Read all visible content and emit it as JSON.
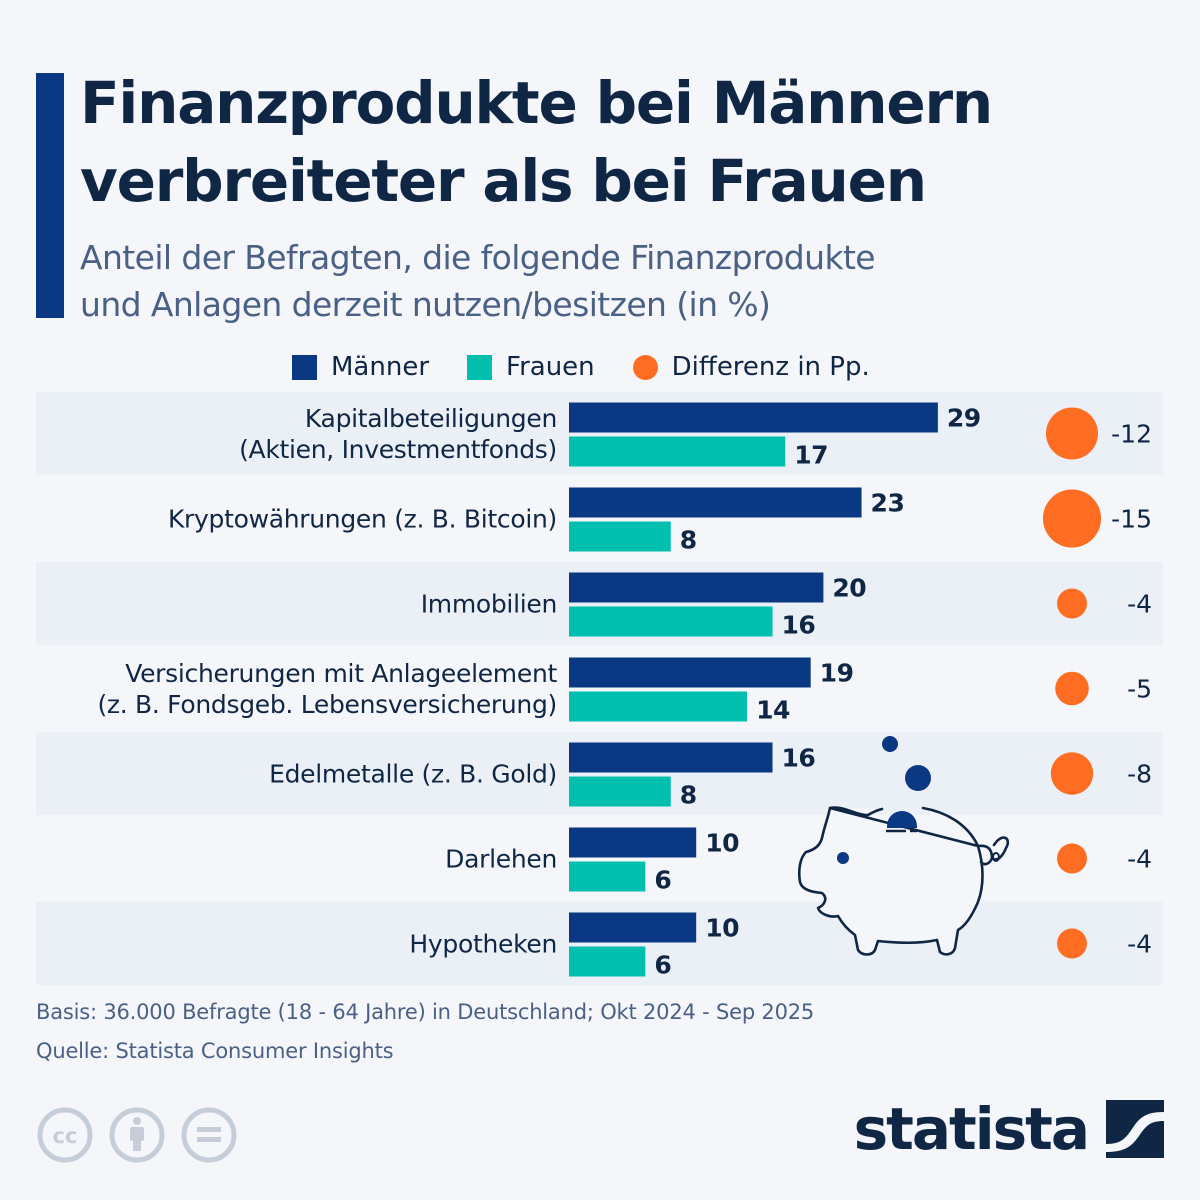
{
  "header": {
    "title_line1": "Finanzprodukte bei Männern",
    "title_line2": "verbreiteter als bei Frauen",
    "subtitle_line1": "Anteil der Befragten, die folgende Finanzprodukte",
    "subtitle_line2": "und Anlagen derzeit nutzen/besitzen (in %)"
  },
  "colors": {
    "men": "#0b3882",
    "women": "#00bfae",
    "difference": "#ff6d22",
    "accent": "#0b3882",
    "row_band": "#ebf0f7",
    "text": "#0f2644"
  },
  "legend": {
    "men": "Männer",
    "women": "Frauen",
    "difference": "Differenz in Pp."
  },
  "chart_data": {
    "type": "bar",
    "orientation": "horizontal",
    "title": "Finanzprodukte bei Männern verbreiteter als bei Frauen",
    "subtitle": "Anteil der Befragten, die folgende Finanzprodukte und Anlagen derzeit nutzen/besitzen (in %)",
    "xlabel": "",
    "ylabel": "",
    "unit": "%",
    "xlim": [
      0,
      30
    ],
    "grid": false,
    "legend_position": "top-center",
    "categories": [
      [
        "Kapitalbeteiligungen",
        "(Aktien, Investmentfonds)"
      ],
      [
        "Kryptowährungen (z. B. Bitcoin)"
      ],
      [
        "Immobilien"
      ],
      [
        "Versicherungen mit Anlageelement",
        "(z. B. Fondsgeb. Lebensversicherung)"
      ],
      [
        "Edelmetalle (z. B. Gold)"
      ],
      [
        "Darlehen"
      ],
      [
        "Hypotheken"
      ]
    ],
    "series": [
      {
        "name": "Männer",
        "values": [
          29,
          23,
          20,
          19,
          16,
          10,
          10
        ]
      },
      {
        "name": "Frauen",
        "values": [
          17,
          8,
          16,
          14,
          8,
          6,
          6
        ]
      },
      {
        "name": "Differenz in Pp.",
        "type": "bubble",
        "values": [
          -12,
          -15,
          -4,
          -5,
          -8,
          -4,
          -4
        ]
      }
    ]
  },
  "footer": {
    "basis": "Basis: 36.000 Befragte (18 - 64 Jahre) in Deutschland; Okt 2024 - Sep 2025",
    "source": "Quelle: Statista Consumer Insights",
    "brand": "statista",
    "license_icons": [
      "cc-icon",
      "attribution-icon",
      "no-derivatives-icon"
    ]
  }
}
